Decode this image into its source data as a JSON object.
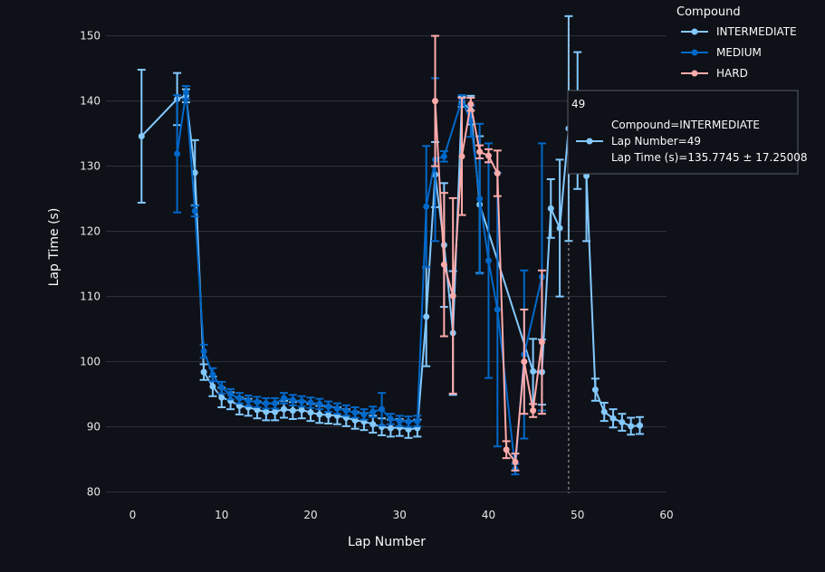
{
  "chart_data": {
    "type": "line",
    "xlabel": "Lap Number",
    "ylabel": "Lap Time (s)",
    "xlim": [
      -3,
      60
    ],
    "ylim": [
      78,
      153
    ],
    "xticks": [
      0,
      10,
      20,
      30,
      40,
      50,
      60
    ],
    "yticks": [
      80,
      90,
      100,
      110,
      120,
      130,
      140,
      150
    ],
    "grid": true,
    "legend": {
      "title": "Compound",
      "placement": "top-right"
    },
    "series": [
      {
        "name": "INTERMEDIATE",
        "color": "#83c9ff",
        "points": [
          [
            1,
            134.6,
            10.2
          ],
          [
            5,
            140.3,
            4.0
          ],
          [
            6,
            140.8,
            1.0
          ],
          [
            7,
            129.0,
            5.0
          ],
          [
            8,
            98.4,
            1.2
          ],
          [
            9,
            96.2,
            1.5
          ],
          [
            10,
            94.5,
            1.5
          ],
          [
            11,
            94.0,
            1.3
          ],
          [
            12,
            93.2,
            1.3
          ],
          [
            13,
            93.0,
            1.3
          ],
          [
            14,
            92.6,
            1.3
          ],
          [
            15,
            92.3,
            1.3
          ],
          [
            16,
            92.3,
            1.3
          ],
          [
            17,
            92.7,
            1.3
          ],
          [
            18,
            92.5,
            1.3
          ],
          [
            19,
            92.6,
            1.3
          ],
          [
            20,
            92.2,
            1.3
          ],
          [
            21,
            91.9,
            1.3
          ],
          [
            22,
            91.8,
            1.3
          ],
          [
            23,
            91.7,
            1.3
          ],
          [
            24,
            91.4,
            1.3
          ],
          [
            25,
            91.0,
            1.3
          ],
          [
            26,
            90.8,
            1.3
          ],
          [
            27,
            90.4,
            1.3
          ],
          [
            28,
            90.0,
            1.3
          ],
          [
            29,
            89.8,
            1.3
          ],
          [
            30,
            89.9,
            1.3
          ],
          [
            31,
            89.6,
            1.3
          ],
          [
            32,
            89.8,
            1.3
          ],
          [
            33,
            106.9,
            7.6
          ],
          [
            34,
            128.7,
            5.0
          ],
          [
            35,
            117.9,
            9.5
          ],
          [
            36,
            104.4,
            9.5
          ],
          [
            37,
            139.9,
            0.8
          ],
          [
            38,
            138.6,
            2.2
          ],
          [
            39,
            124.1,
            10.5
          ],
          [
            45,
            98.5,
            5.0
          ],
          [
            46,
            98.4,
            5.0
          ],
          [
            47,
            123.5,
            4.5
          ],
          [
            48,
            120.5,
            10.5
          ],
          [
            49,
            135.7745,
            17.25008
          ],
          [
            50,
            137.0,
            10.5
          ],
          [
            51,
            128.5,
            10.0
          ],
          [
            52,
            95.7,
            1.7
          ],
          [
            53,
            92.3,
            1.4
          ],
          [
            54,
            91.3,
            1.4
          ],
          [
            55,
            90.7,
            1.3
          ],
          [
            56,
            90.1,
            1.3
          ],
          [
            57,
            90.2,
            1.3
          ]
        ]
      },
      {
        "name": "MEDIUM",
        "color": "#0068c9",
        "points": [
          [
            5,
            131.9,
            9.0
          ],
          [
            6,
            141.3,
            1.0
          ],
          [
            7,
            123.1,
            0.8
          ],
          [
            8,
            101.6,
            1.0
          ],
          [
            9,
            98.0,
            1.0
          ],
          [
            10,
            96.0,
            0.9
          ],
          [
            11,
            95.0,
            0.8
          ],
          [
            12,
            94.4,
            0.8
          ],
          [
            13,
            94.0,
            0.8
          ],
          [
            14,
            93.8,
            0.8
          ],
          [
            15,
            93.6,
            0.8
          ],
          [
            16,
            93.6,
            0.8
          ],
          [
            17,
            94.4,
            0.8
          ],
          [
            18,
            94.1,
            0.8
          ],
          [
            19,
            93.9,
            0.8
          ],
          [
            20,
            93.7,
            0.8
          ],
          [
            21,
            93.5,
            0.8
          ],
          [
            22,
            93.1,
            0.8
          ],
          [
            23,
            92.8,
            0.8
          ],
          [
            24,
            92.5,
            0.8
          ],
          [
            25,
            92.2,
            0.8
          ],
          [
            26,
            91.9,
            0.8
          ],
          [
            27,
            92.3,
            0.8
          ],
          [
            28,
            92.7,
            2.5
          ],
          [
            29,
            91.2,
            0.8
          ],
          [
            30,
            90.9,
            0.8
          ],
          [
            31,
            90.8,
            0.8
          ],
          [
            32,
            90.9,
            0.8
          ],
          [
            33,
            123.8,
            9.3
          ],
          [
            34,
            131.0,
            12.5
          ],
          [
            35,
            131.5,
            0.8
          ],
          [
            37,
            140.2,
            0.7
          ],
          [
            38,
            136.9,
            2.4
          ],
          [
            39,
            125.0,
            11.5
          ],
          [
            40,
            115.5,
            18.0
          ],
          [
            41,
            108.0,
            21.0
          ],
          [
            43,
            83.5,
            0.8
          ],
          [
            44,
            101.1,
            12.9
          ],
          [
            46,
            113.0,
            20.5
          ]
        ]
      },
      {
        "name": "HARD",
        "color": "#ffabab",
        "points": [
          [
            34,
            140.0,
            10.0
          ],
          [
            35,
            114.9,
            11.0
          ],
          [
            36,
            110.1,
            15.0
          ],
          [
            37,
            131.5,
            9.0
          ],
          [
            38,
            139.5,
            1.0
          ],
          [
            39,
            132.2,
            1.0
          ],
          [
            40,
            131.6,
            1.0
          ],
          [
            41,
            128.9,
            3.5
          ],
          [
            42,
            86.5,
            1.3
          ],
          [
            43,
            84.6,
            1.3
          ],
          [
            44,
            100.0,
            8.0
          ],
          [
            45,
            92.5,
            1.0
          ],
          [
            46,
            103.0,
            11.0
          ]
        ]
      }
    ],
    "hover": {
      "x": 49,
      "header": "49",
      "lines": [
        "Compound=INTERMEDIATE",
        "Lap Number=49",
        "Lap Time (s)=135.7745 ± 17.25008"
      ],
      "series_color": "#83c9ff"
    }
  },
  "style": {
    "background": "#0e1117",
    "grid_color": "#31333f",
    "text_color": "#fafafa"
  }
}
